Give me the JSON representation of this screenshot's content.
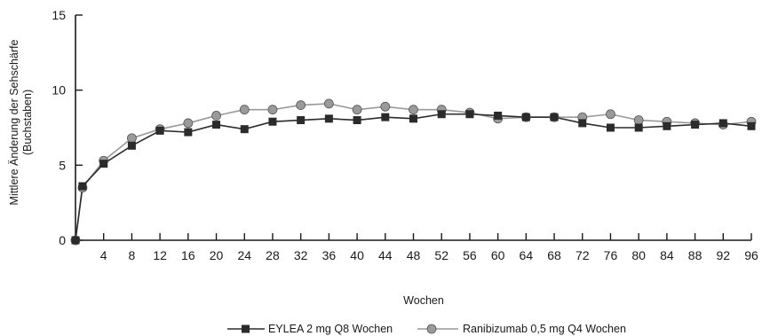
{
  "chart_data": {
    "type": "line",
    "title": "",
    "xlabel": "Wochen",
    "ylabel_line1": "Mittlere Änderung der Sehschärfe",
    "ylabel_line2": "(Buchstaben)",
    "ylim": [
      0,
      15
    ],
    "xlim": [
      0,
      96
    ],
    "yticks": [
      0,
      5,
      10,
      15
    ],
    "xticks": [
      4,
      8,
      12,
      16,
      20,
      24,
      28,
      32,
      36,
      40,
      44,
      48,
      52,
      56,
      60,
      64,
      68,
      72,
      76,
      80,
      84,
      88,
      92,
      96
    ],
    "grid": false,
    "legend_position": "bottom-center",
    "x": [
      0,
      1,
      4,
      8,
      12,
      16,
      20,
      24,
      28,
      32,
      36,
      40,
      44,
      48,
      52,
      56,
      60,
      64,
      68,
      72,
      76,
      80,
      84,
      88,
      92,
      96
    ],
    "series": [
      {
        "name": "EYLEA 2 mg Q8 Wochen",
        "marker": "square",
        "marker_color": "#2b2b2b",
        "line_color": "#2b2b2b",
        "values": [
          0,
          3.6,
          5.1,
          6.3,
          7.3,
          7.2,
          7.7,
          7.4,
          7.9,
          8.0,
          8.1,
          8.0,
          8.2,
          8.1,
          8.4,
          8.4,
          8.3,
          8.2,
          8.2,
          7.8,
          7.5,
          7.5,
          7.6,
          7.7,
          7.8,
          7.6
        ]
      },
      {
        "name": "Ranibizumab 0,5 mg Q4 Wochen",
        "marker": "circle",
        "marker_color": "#9a9a9a",
        "line_color": "#9a9a9a",
        "values": [
          0,
          3.5,
          5.3,
          6.8,
          7.4,
          7.8,
          8.3,
          8.7,
          8.7,
          9.0,
          9.1,
          8.7,
          8.9,
          8.7,
          8.7,
          8.5,
          8.1,
          8.2,
          8.2,
          8.2,
          8.4,
          8.0,
          7.9,
          7.8,
          7.7,
          7.9
        ]
      }
    ]
  }
}
